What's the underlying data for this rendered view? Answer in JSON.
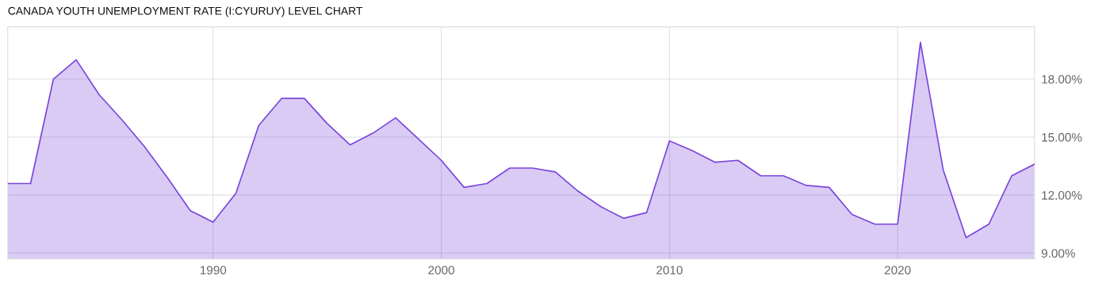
{
  "chart_data": {
    "type": "area",
    "title": "CANADA YOUTH UNEMPLOYMENT RATE (I:CYURUY) LEVEL CHART",
    "x": [
      1981,
      1982,
      1983,
      1984,
      1985,
      1986,
      1987,
      1988,
      1989,
      1990,
      1991,
      1992,
      1993,
      1994,
      1995,
      1996,
      1997,
      1998,
      1999,
      2000,
      2001,
      2002,
      2003,
      2004,
      2005,
      2006,
      2007,
      2008,
      2009,
      2010,
      2011,
      2012,
      2013,
      2014,
      2015,
      2016,
      2017,
      2018,
      2019,
      2020,
      2021,
      2022,
      2023,
      2024,
      2025,
      2026
    ],
    "series": [
      {
        "color": "#7b45dc",
        "values": [
          12.6,
          12.6,
          18.0,
          19.0,
          17.2,
          15.9,
          14.5,
          12.9,
          11.2,
          10.6,
          12.1,
          15.6,
          17.0,
          17.0,
          15.7,
          14.6,
          15.2,
          16.0,
          14.9,
          13.8,
          12.4,
          12.6,
          13.4,
          13.4,
          13.2,
          12.2,
          11.4,
          10.8,
          11.1,
          14.8,
          14.3,
          13.7,
          13.8,
          13.0,
          13.0,
          12.5,
          12.4,
          11.0,
          10.5,
          10.5,
          19.9,
          13.3,
          9.8,
          10.5,
          13.0,
          13.6
        ]
      }
    ],
    "xlim": [
      1981,
      2026
    ],
    "ylim": [
      8.7,
      20.7
    ],
    "xticks": [
      1990,
      2000,
      2010,
      2020
    ],
    "yticks": [
      {
        "value": 9,
        "label": "9.00%"
      },
      {
        "value": 12,
        "label": "12.00%"
      },
      {
        "value": 15,
        "label": "15.00%"
      },
      {
        "value": 18,
        "label": "18.00%"
      }
    ],
    "grid": true,
    "legend": false
  }
}
